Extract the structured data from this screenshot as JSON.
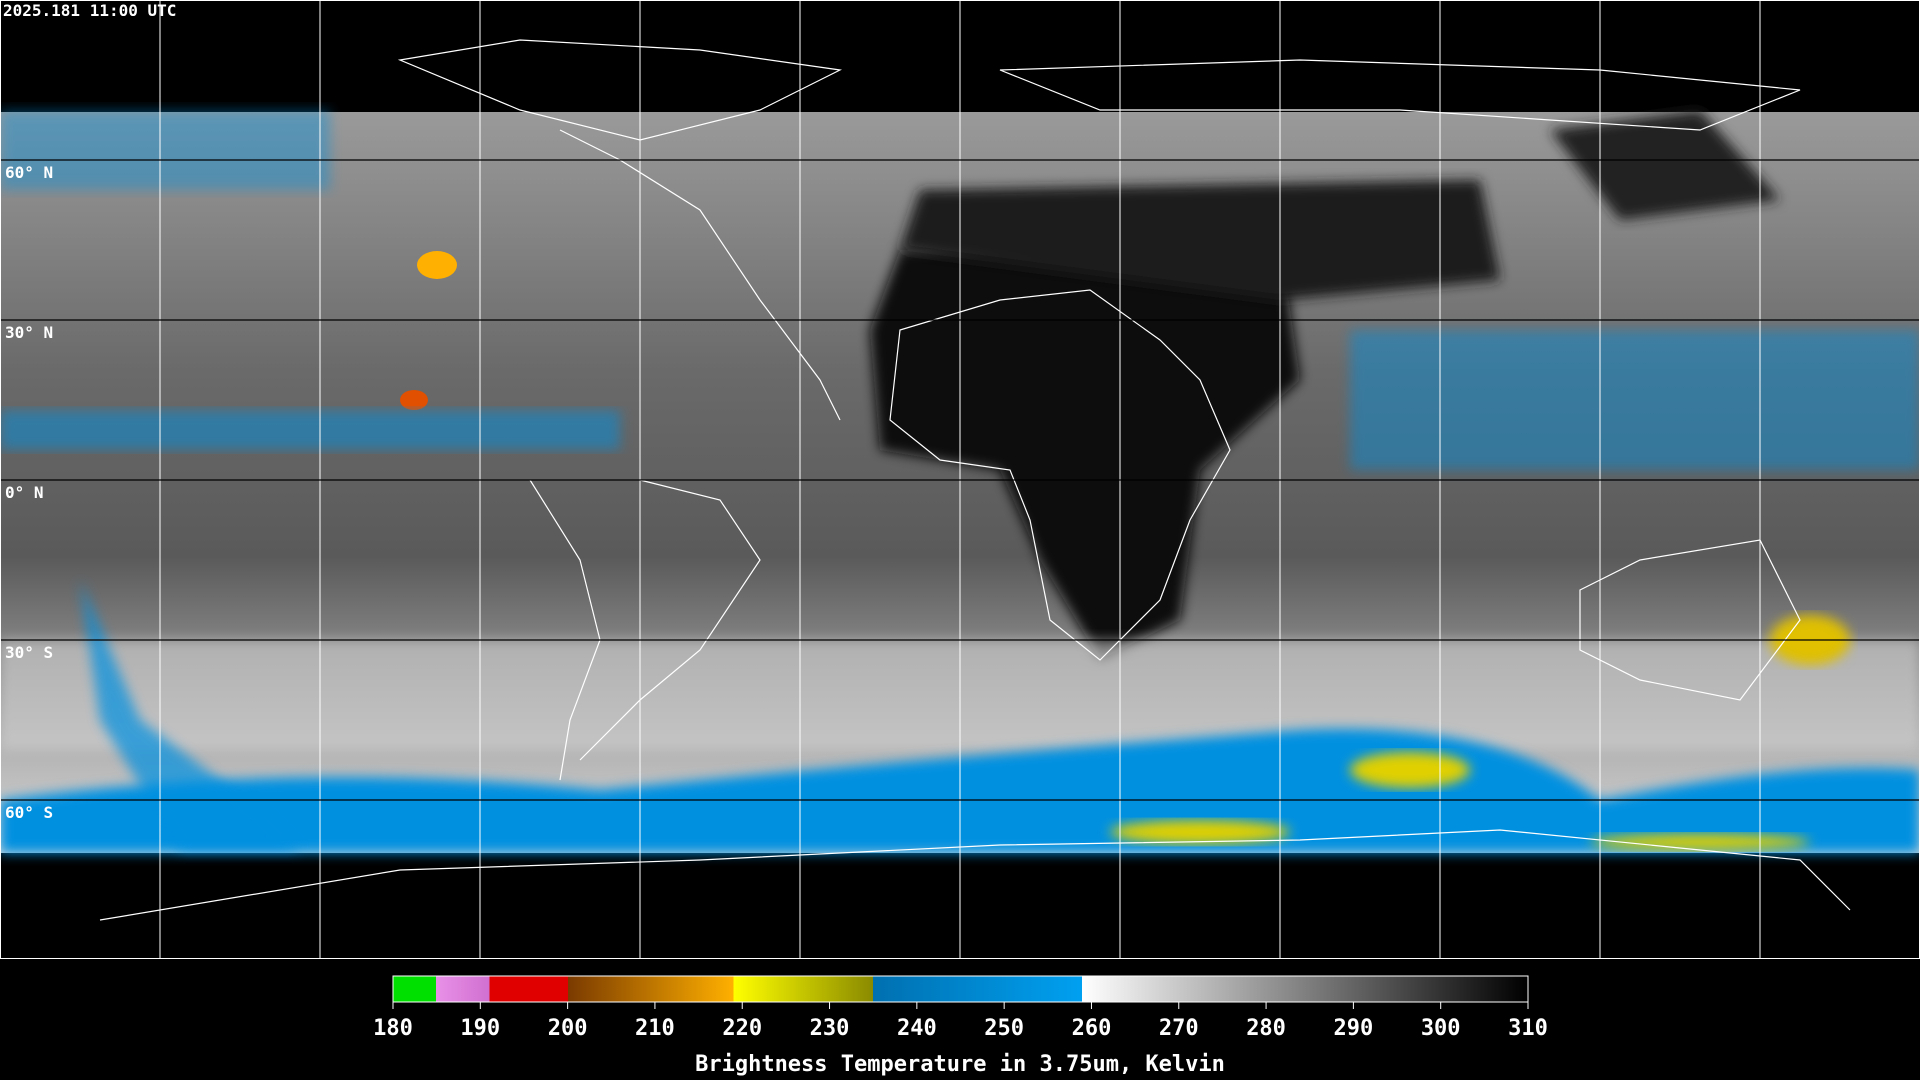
{
  "header": {
    "timestamp": "2025.181 11:00 UTC"
  },
  "map": {
    "latitude_labels": [
      "60° N",
      "30° N",
      "0° N",
      "30° S",
      "60° S"
    ]
  },
  "colorbar": {
    "ticks": [
      180,
      190,
      200,
      210,
      220,
      230,
      240,
      250,
      260,
      270,
      280,
      290,
      300,
      310
    ],
    "label": "Brightness Temperature in 3.75um, Kelvin"
  }
}
